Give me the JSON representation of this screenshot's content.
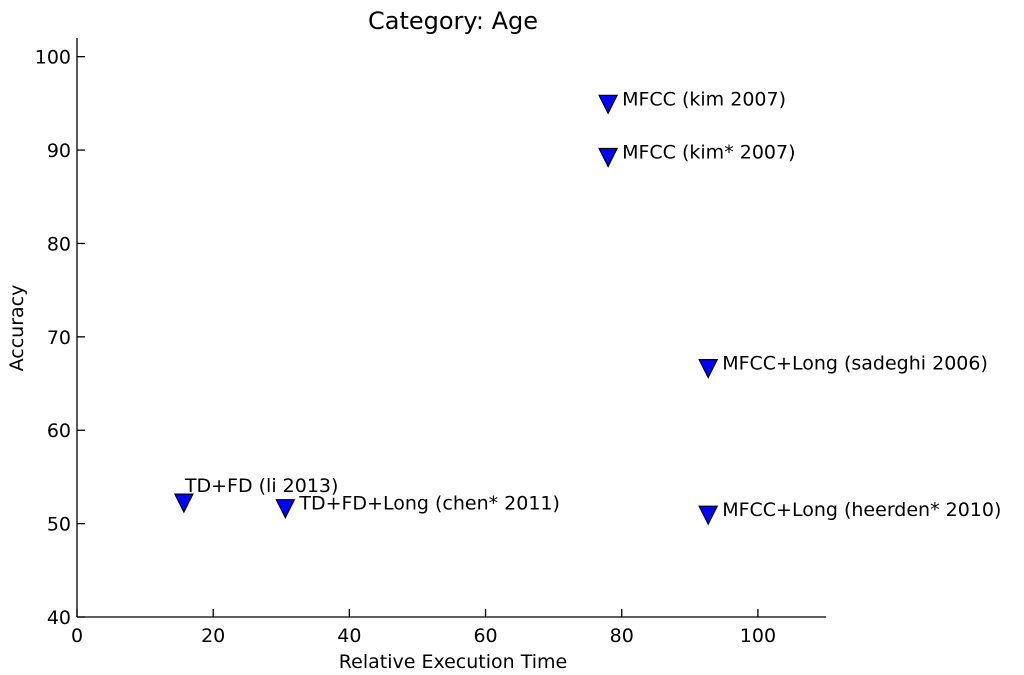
{
  "chart_data": {
    "type": "scatter",
    "title": "Category: Age",
    "xlabel": "Relative Execution Time",
    "ylabel": "Accuracy",
    "xlim": [
      0,
      110
    ],
    "ylim": [
      40,
      102
    ],
    "xticks": [
      0,
      20,
      40,
      60,
      80,
      100
    ],
    "yticks": [
      40,
      50,
      60,
      70,
      80,
      90,
      100
    ],
    "grid": false,
    "marker": "triangle-down",
    "marker_color": "#0000ff",
    "points": [
      {
        "x": 78,
        "y": 94.9,
        "label": "MFCC (kim 2007)"
      },
      {
        "x": 78,
        "y": 89.2,
        "label": "MFCC (kim* 2007)"
      },
      {
        "x": 92.7,
        "y": 66.6,
        "label": "MFCC+Long (sadeghi 2006)"
      },
      {
        "x": 15.7,
        "y": 52.2,
        "label": "TD+FD (li 2013)"
      },
      {
        "x": 30.6,
        "y": 51.6,
        "label": "TD+FD+Long (chen* 2011)"
      },
      {
        "x": 92.7,
        "y": 50.9,
        "label": "MFCC+Long (heerden* 2010)"
      }
    ]
  }
}
